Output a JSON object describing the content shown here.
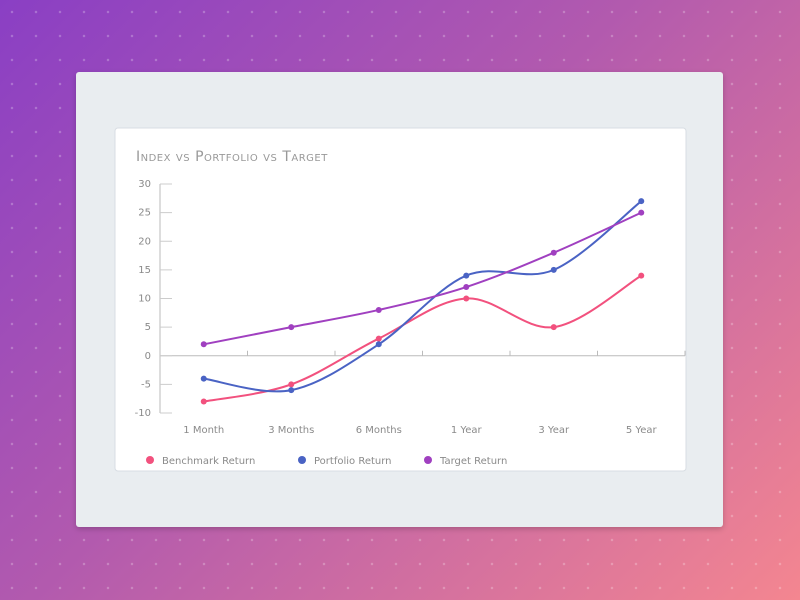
{
  "chart_data": {
    "type": "line",
    "title": "Index vs Portfolio vs Target",
    "categories": [
      "1 Month",
      "3 Months",
      "6 Months",
      "1 Year",
      "3 Year",
      "5 Year"
    ],
    "series": [
      {
        "name": "Benchmark Return",
        "color": "#f2517e",
        "values": [
          -8,
          -5,
          3,
          10,
          5,
          14
        ]
      },
      {
        "name": "Portfolio Return",
        "color": "#4a63c4",
        "values": [
          -4,
          -6,
          2,
          14,
          15,
          27
        ]
      },
      {
        "name": "Target Return",
        "color": "#a040c0",
        "values": [
          2,
          5,
          8,
          12,
          18,
          25
        ]
      }
    ],
    "ylim": [
      -10,
      30
    ],
    "yticks": [
      -10,
      -5,
      0,
      5,
      10,
      15,
      20,
      25,
      30
    ],
    "grid": false,
    "legend": "bottom"
  }
}
